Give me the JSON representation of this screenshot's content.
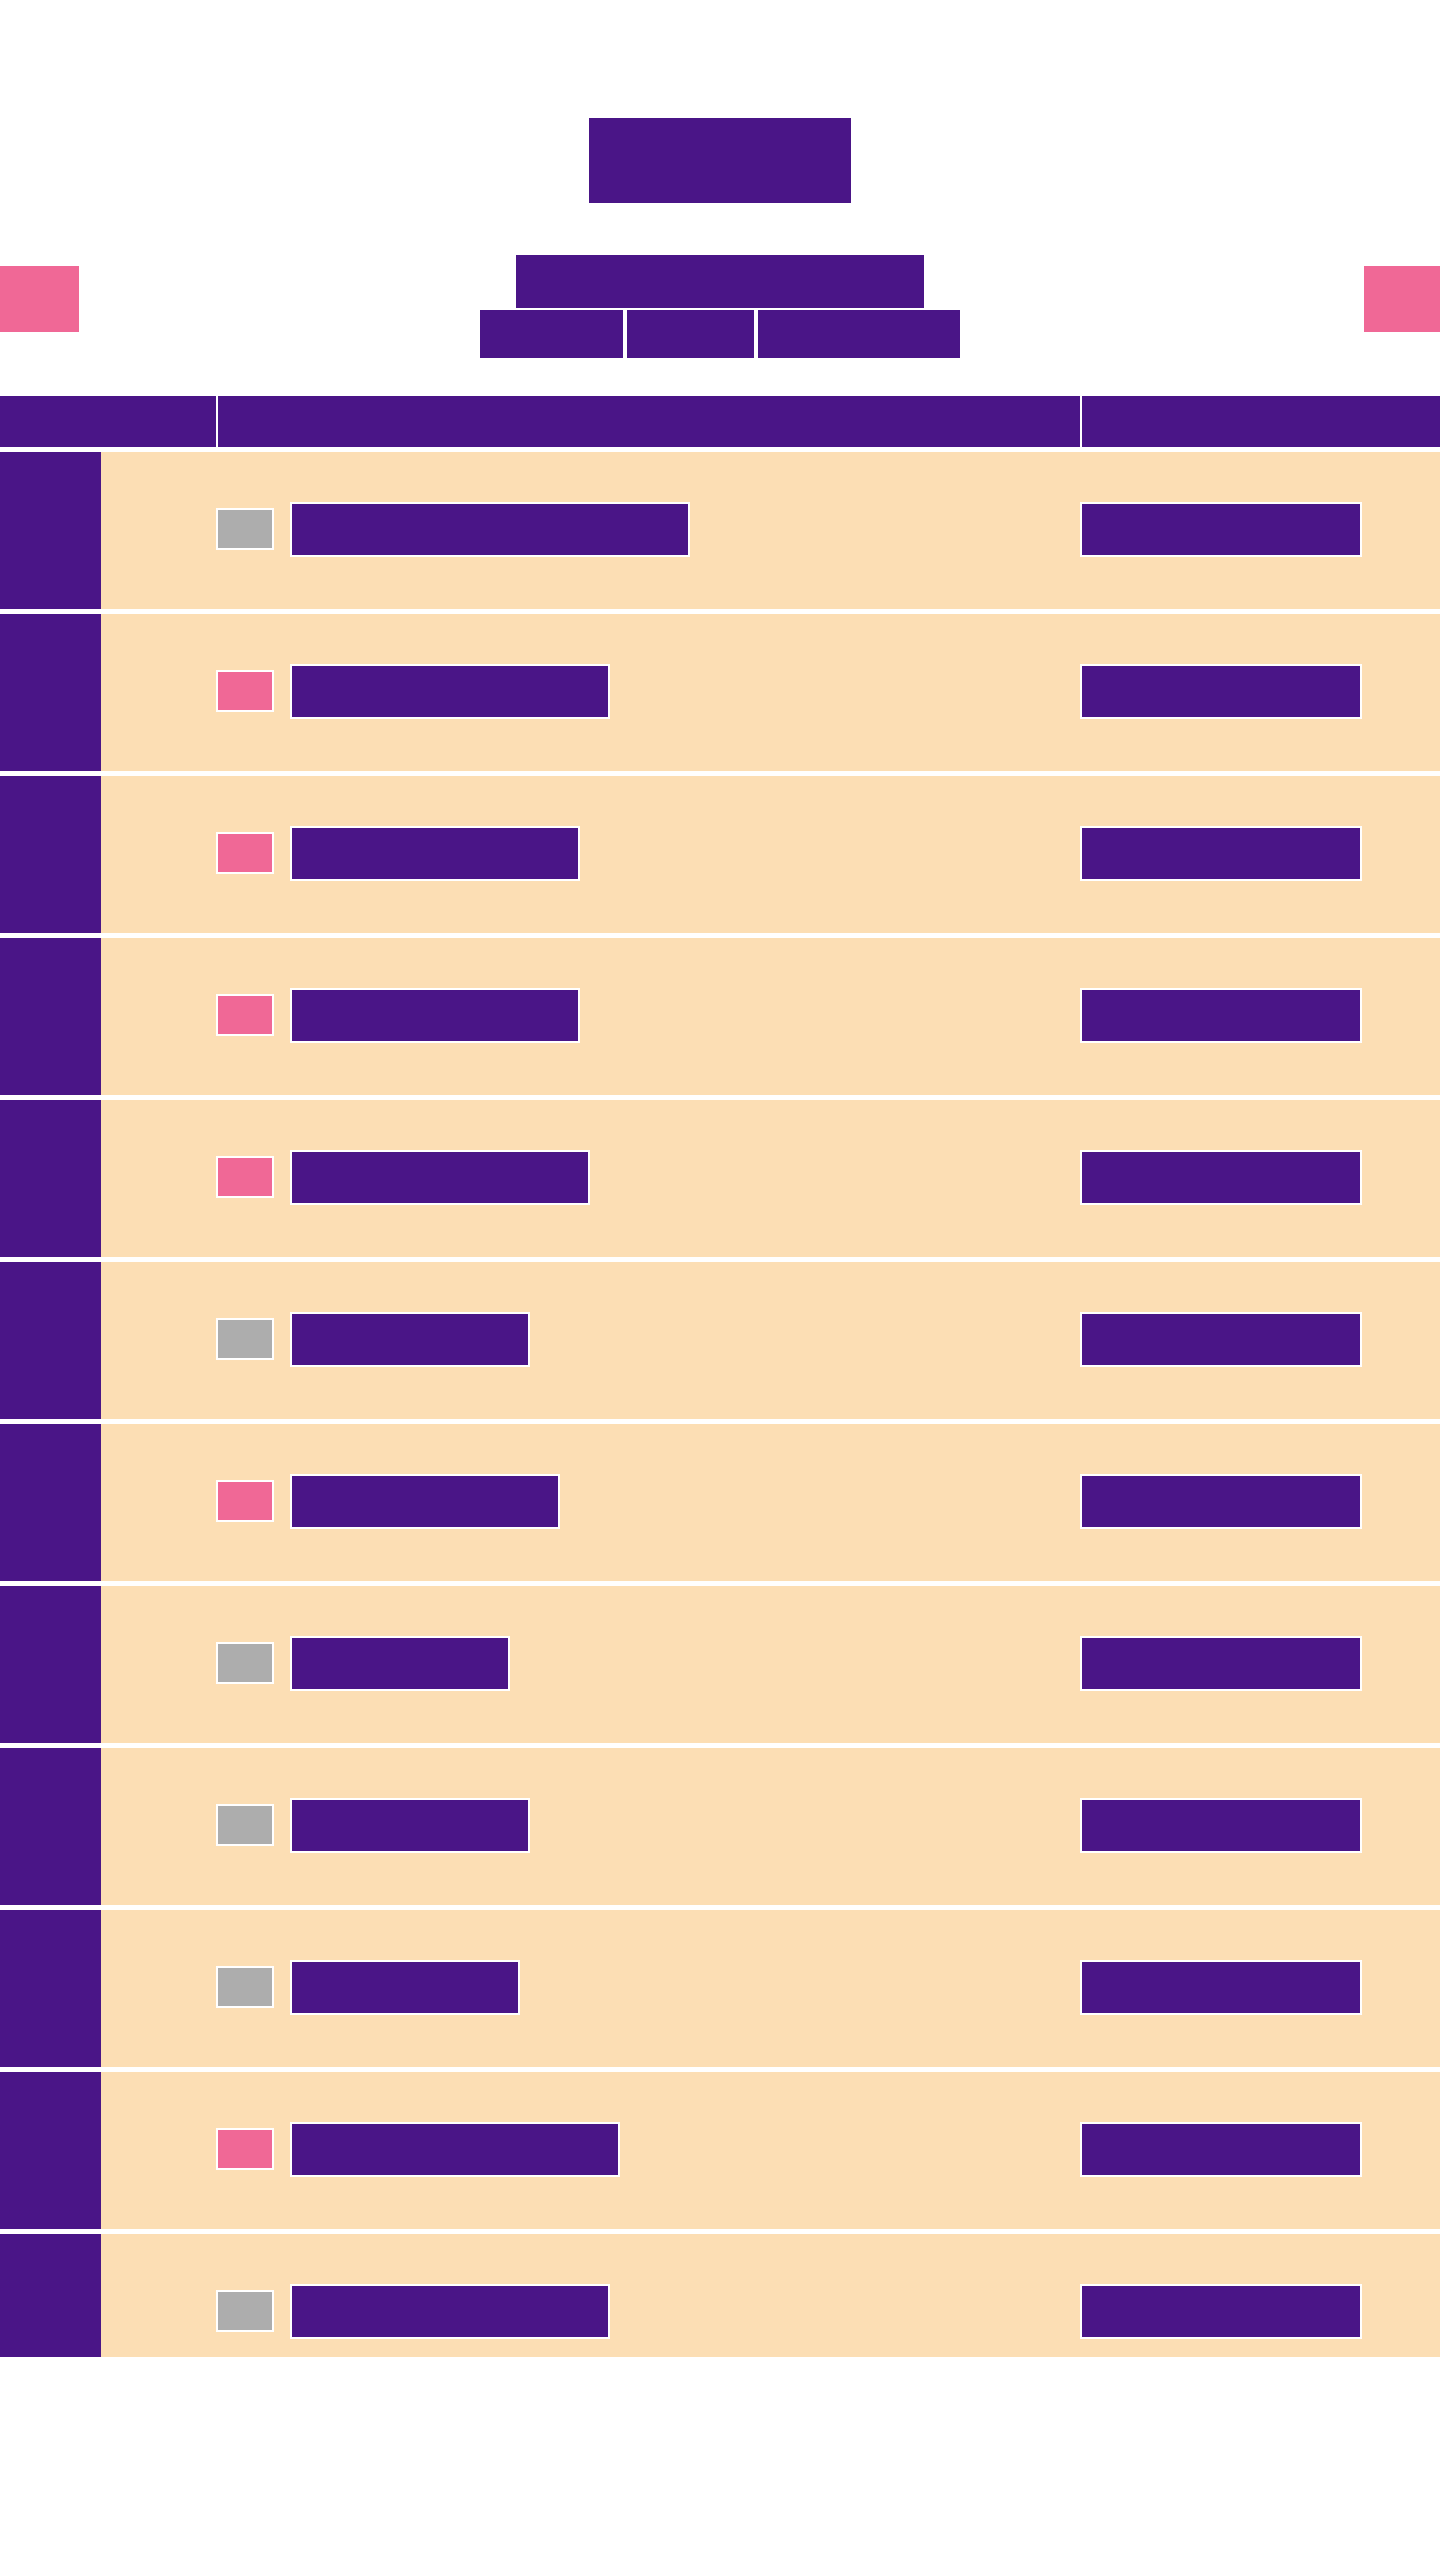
{
  "colors": {
    "background": "#ffffff",
    "primary": "#4a1587",
    "accent": "#f06896",
    "inactive": "#adadad",
    "row_background": "#fcdeb4"
  },
  "rows": [
    {
      "status": "inactive",
      "name_fraction": 0.4
    },
    {
      "status": "active",
      "name_fraction": 0.32
    },
    {
      "status": "active",
      "name_fraction": 0.29
    },
    {
      "status": "active",
      "name_fraction": 0.29
    },
    {
      "status": "active",
      "name_fraction": 0.3
    },
    {
      "status": "inactive",
      "name_fraction": 0.24
    },
    {
      "status": "active",
      "name_fraction": 0.27
    },
    {
      "status": "inactive",
      "name_fraction": 0.22
    },
    {
      "status": "inactive",
      "name_fraction": 0.24
    },
    {
      "status": "inactive",
      "name_fraction": 0.23
    },
    {
      "status": "active",
      "name_fraction": 0.33
    },
    {
      "status": "inactive",
      "name_fraction": 0.32
    }
  ]
}
